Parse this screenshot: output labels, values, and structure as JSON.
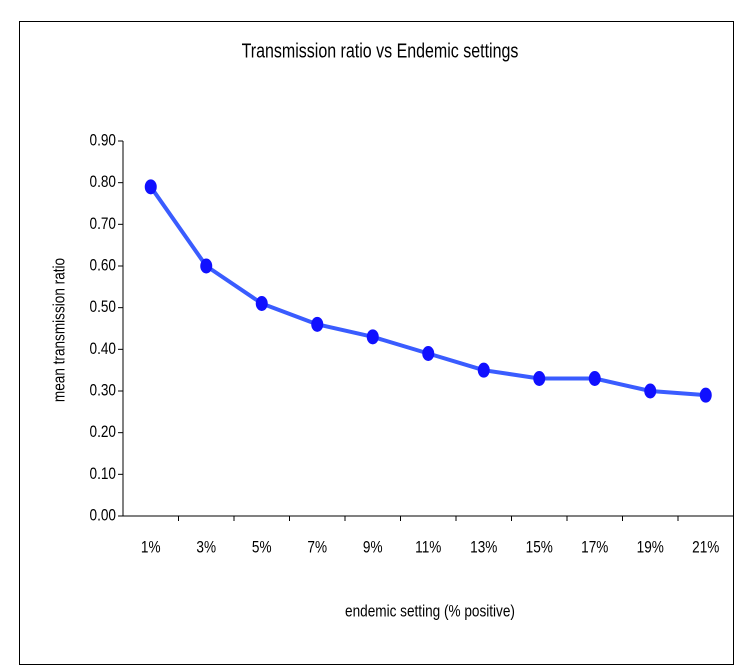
{
  "chart_data": {
    "type": "line",
    "title": "Transmission ratio vs Endemic settings",
    "x_label": "endemic setting (% positive)",
    "y_label": "mean transmission ratio",
    "categories": [
      "1%",
      "3%",
      "5%",
      "7%",
      "9%",
      "11%",
      "13%",
      "15%",
      "17%",
      "19%",
      "21%"
    ],
    "series": [
      {
        "name": "mean transmission ratio",
        "color": "#3a5cff",
        "marker_color": "#1010ff",
        "values": [
          0.79,
          0.6,
          0.51,
          0.46,
          0.43,
          0.39,
          0.35,
          0.33,
          0.33,
          0.3,
          0.29
        ]
      }
    ],
    "ylim": [
      0,
      0.9
    ],
    "yticks": [
      {
        "value": 0,
        "label": "0.00"
      },
      {
        "value": 0.1,
        "label": "0.10"
      },
      {
        "value": 0.2,
        "label": "0.20"
      },
      {
        "value": 0.3,
        "label": "0.30"
      },
      {
        "value": 0.4,
        "label": "0.40"
      },
      {
        "value": 0.5,
        "label": "0.50"
      },
      {
        "value": 0.6,
        "label": "0.60"
      },
      {
        "value": 0.7,
        "label": "0.70"
      },
      {
        "value": 0.8,
        "label": "0.80"
      },
      {
        "value": 0.9,
        "label": "0.90"
      }
    ],
    "grid": false
  }
}
